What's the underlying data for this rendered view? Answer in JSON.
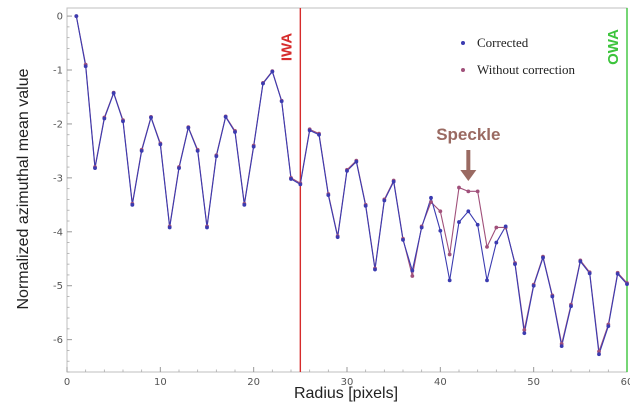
{
  "chart_data": {
    "type": "line",
    "xlabel": "Radius [pixels]",
    "ylabel": "Normalized azimuthal mean value",
    "xlim": [
      0,
      60
    ],
    "ylim": [
      -6.6,
      0.15
    ],
    "xticks": [
      0,
      10,
      20,
      30,
      40,
      50,
      60
    ],
    "yticks": [
      0,
      -1,
      -2,
      -3,
      -4,
      -5,
      -6
    ],
    "grid": false,
    "legend_position": "top-right",
    "x": [
      1,
      2,
      3,
      4,
      5,
      6,
      7,
      8,
      9,
      10,
      11,
      12,
      13,
      14,
      15,
      16,
      17,
      18,
      19,
      20,
      21,
      22,
      23,
      24,
      25,
      26,
      27,
      28,
      29,
      30,
      31,
      32,
      33,
      34,
      35,
      36,
      37,
      38,
      39,
      40,
      41,
      42,
      43,
      44,
      45,
      46,
      47,
      48,
      49,
      50,
      51,
      52,
      53,
      54,
      55,
      56,
      57,
      58,
      59,
      60
    ],
    "series": [
      {
        "name": "Corrected",
        "color": "#3b3bb0",
        "values": [
          0.0,
          -0.93,
          -2.82,
          -1.9,
          -1.43,
          -1.95,
          -3.5,
          -2.5,
          -1.88,
          -2.38,
          -3.92,
          -2.82,
          -2.07,
          -2.5,
          -3.92,
          -2.6,
          -1.87,
          -2.15,
          -3.5,
          -2.42,
          -1.25,
          -1.03,
          -1.58,
          -3.02,
          -3.12,
          -2.12,
          -2.2,
          -3.32,
          -4.1,
          -2.87,
          -2.7,
          -3.52,
          -4.7,
          -3.42,
          -3.07,
          -4.15,
          -4.72,
          -3.92,
          -3.37,
          -3.98,
          -4.9,
          -3.82,
          -3.62,
          -3.87,
          -4.9,
          -4.2,
          -3.9,
          -4.6,
          -5.88,
          -5.0,
          -4.48,
          -5.2,
          -6.12,
          -5.38,
          -4.55,
          -4.77,
          -6.27,
          -5.75,
          -4.78,
          -4.97
        ]
      },
      {
        "name": "Without correction",
        "color": "#a0507a",
        "values": [
          0.0,
          -0.9,
          -2.8,
          -1.88,
          -1.42,
          -1.93,
          -3.48,
          -2.48,
          -1.87,
          -2.36,
          -3.9,
          -2.8,
          -2.06,
          -2.48,
          -3.9,
          -2.58,
          -1.86,
          -2.13,
          -3.48,
          -2.4,
          -1.24,
          -1.02,
          -1.57,
          -3.0,
          -3.1,
          -2.1,
          -2.18,
          -3.3,
          -4.08,
          -2.85,
          -2.68,
          -3.5,
          -4.68,
          -3.4,
          -3.05,
          -4.13,
          -4.82,
          -3.9,
          -3.45,
          -3.62,
          -4.42,
          -3.18,
          -3.25,
          -3.25,
          -4.28,
          -3.92,
          -3.92,
          -4.58,
          -5.82,
          -4.98,
          -4.46,
          -5.18,
          -6.08,
          -5.35,
          -4.53,
          -4.75,
          -6.22,
          -5.72,
          -4.76,
          -4.95
        ]
      }
    ],
    "vlines": [
      {
        "x": 25,
        "label": "IWA",
        "color": "#d62b2b"
      },
      {
        "x": 60,
        "label": "OWA",
        "color": "#3cc43c"
      }
    ],
    "annotations": [
      {
        "text": "Speckle",
        "x": 43,
        "y": -3.15,
        "color": "#9a6a62"
      }
    ]
  }
}
